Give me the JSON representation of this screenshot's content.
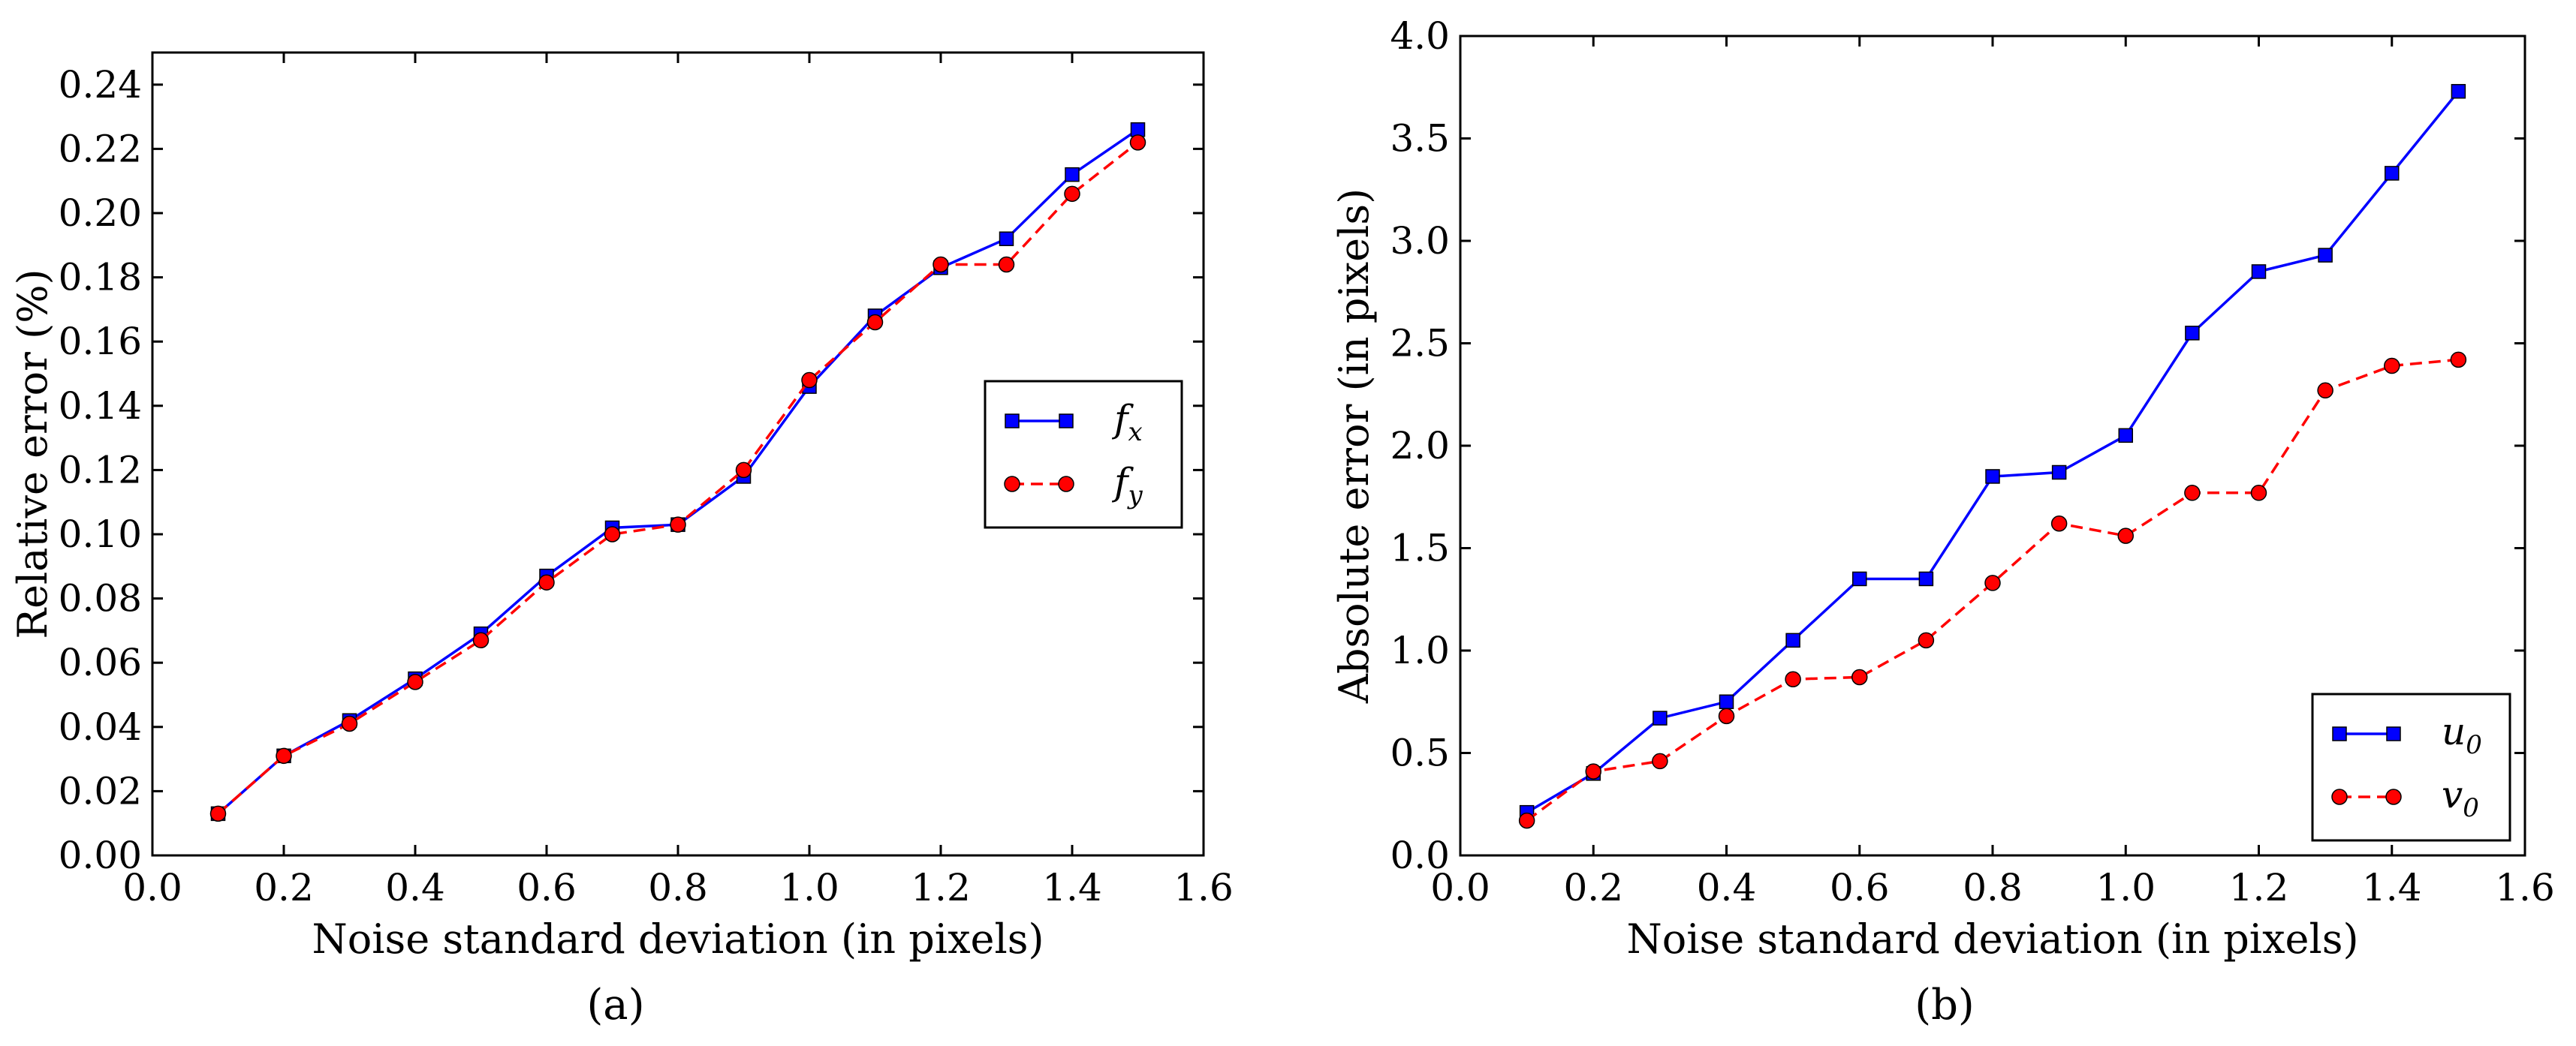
{
  "chart_data": [
    {
      "type": "line",
      "caption": "(a)",
      "xlabel": "Noise standard deviation (in pixels)",
      "ylabel": "Relative error (%)",
      "xlim": [
        0.0,
        1.6
      ],
      "ylim": [
        0.0,
        0.25
      ],
      "x_ticks": [
        "0.0",
        "0.2",
        "0.4",
        "0.6",
        "0.8",
        "1.0",
        "1.2",
        "1.4",
        "1.6"
      ],
      "y_ticks": [
        "0.00",
        "0.02",
        "0.04",
        "0.06",
        "0.08",
        "0.10",
        "0.12",
        "0.14",
        "0.16",
        "0.18",
        "0.20",
        "0.22",
        "0.24"
      ],
      "legend_position": "center-right",
      "x": [
        0.1,
        0.2,
        0.3,
        0.4,
        0.5,
        0.6,
        0.7,
        0.8,
        0.9,
        1.0,
        1.1,
        1.2,
        1.3,
        1.4,
        1.5
      ],
      "series": [
        {
          "name": "f_x",
          "label_base": "f",
          "label_sub": "x",
          "color": "#0000ff",
          "line": "solid",
          "marker": "square",
          "values": [
            0.013,
            0.031,
            0.042,
            0.055,
            0.069,
            0.087,
            0.102,
            0.103,
            0.118,
            0.146,
            0.168,
            0.183,
            0.192,
            0.212,
            0.226
          ]
        },
        {
          "name": "f_y",
          "label_base": "f",
          "label_sub": "y",
          "color": "#ff0000",
          "line": "dashed",
          "marker": "circle",
          "values": [
            0.013,
            0.031,
            0.041,
            0.054,
            0.067,
            0.085,
            0.1,
            0.103,
            0.12,
            0.148,
            0.166,
            0.184,
            0.184,
            0.206,
            0.222
          ]
        }
      ]
    },
    {
      "type": "line",
      "caption": "(b)",
      "xlabel": "Noise standard deviation (in pixels)",
      "ylabel": "Absolute error (in pixels)",
      "xlim": [
        0.0,
        1.6
      ],
      "ylim": [
        0.0,
        4.0
      ],
      "x_ticks": [
        "0.0",
        "0.2",
        "0.4",
        "0.6",
        "0.8",
        "1.0",
        "1.2",
        "1.4",
        "1.6"
      ],
      "y_ticks": [
        "0.0",
        "0.5",
        "1.0",
        "1.5",
        "2.0",
        "2.5",
        "3.0",
        "3.5",
        "4.0"
      ],
      "legend_position": "bottom-right",
      "x": [
        0.1,
        0.2,
        0.3,
        0.4,
        0.5,
        0.6,
        0.7,
        0.8,
        0.9,
        1.0,
        1.1,
        1.2,
        1.3,
        1.4,
        1.5
      ],
      "series": [
        {
          "name": "u_0",
          "label_base": "u",
          "label_sub": "0",
          "color": "#0000ff",
          "line": "solid",
          "marker": "square",
          "values": [
            0.21,
            0.4,
            0.67,
            0.75,
            1.05,
            1.35,
            1.35,
            1.85,
            1.87,
            2.05,
            2.55,
            2.85,
            2.93,
            3.33,
            3.73
          ]
        },
        {
          "name": "v_0",
          "label_base": "v",
          "label_sub": "0",
          "color": "#ff0000",
          "line": "dashed",
          "marker": "circle",
          "values": [
            0.17,
            0.41,
            0.46,
            0.68,
            0.86,
            0.87,
            1.05,
            1.33,
            1.62,
            1.56,
            1.77,
            1.77,
            2.27,
            2.39,
            2.42
          ]
        }
      ]
    }
  ]
}
